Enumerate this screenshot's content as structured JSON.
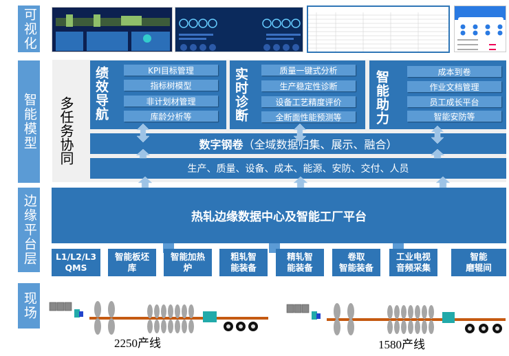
{
  "layers": {
    "visual": "可视化",
    "model": "智能模型",
    "edge": "边缘平台层",
    "field": "现场"
  },
  "coordination": "多任务协同",
  "panels": [
    {
      "title": "绩效导航",
      "items": [
        "KPI目标管理",
        "指标树模型",
        "非计划材管理",
        "库龄分析等"
      ]
    },
    {
      "title": "实时诊断",
      "items": [
        "质量一键式分析",
        "生产稳定性诊断",
        "设备工艺精度评价",
        "全断面性能预测等"
      ]
    },
    {
      "title": "智能助力",
      "items": [
        "成本到卷",
        "作业文档管理",
        "员工成长平台",
        "智能安防等"
      ]
    }
  ],
  "digital_coil": {
    "bold": "数字钢卷",
    "rest": "（全域数据归集、展示、融合）"
  },
  "domains": "生产、质量、设备、成本、能源、安防、交付、人员",
  "platform": "热轧边缘数据中心及智能工厂平台",
  "sources": [
    "L1/L2/L3\nQMS",
    "智能板坯\n库",
    "智能加热\n炉",
    "粗轧智\n能装备",
    "精轧智\n能装备",
    "卷取\n智能装备",
    "工业电视\n音频采集",
    "智能\n磨辊间"
  ],
  "lines": [
    "2250产线",
    "1580产线"
  ],
  "colors": {
    "layer": "#5b9bd5",
    "panel": "#2e75b6",
    "sub": "#5b9bd5",
    "arrow": "#9dc3e6",
    "gray_bg": "#f0f0f0"
  }
}
